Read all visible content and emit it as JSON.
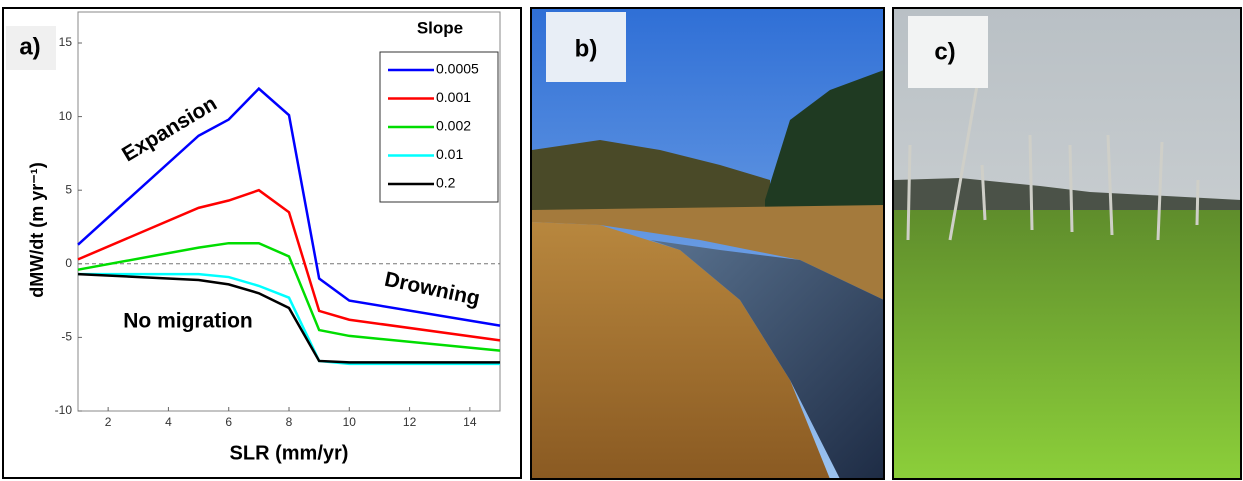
{
  "chart_data": {
    "type": "line",
    "panel_label": "a)",
    "xlabel": "SLR (mm/yr)",
    "ylabel": "dMW/dt (m yr⁻¹)",
    "legend_title": "Slope",
    "legend": "upper right",
    "annotations": [
      "Expansion",
      "Drowning",
      "No migration"
    ],
    "zero_line": true,
    "x": [
      1,
      5,
      6,
      7,
      8,
      9,
      10,
      15
    ],
    "series": [
      {
        "name": "0.0005",
        "color": "#0000ff",
        "values": [
          1.3,
          8.7,
          9.8,
          11.9,
          10.1,
          -1,
          -2.5,
          -4.2
        ]
      },
      {
        "name": "0.001",
        "color": "#ff0000",
        "values": [
          0.3,
          3.8,
          4.3,
          5.0,
          3.5,
          -3.2,
          -3.8,
          -5.2
        ]
      },
      {
        "name": "0.002",
        "color": "#00dd00",
        "values": [
          -0.4,
          1.1,
          1.4,
          1.4,
          0.5,
          -4.5,
          -4.9,
          -5.9
        ]
      },
      {
        "name": "0.01",
        "color": "#00ffff",
        "values": [
          -0.7,
          -0.7,
          -0.9,
          -1.5,
          -2.3,
          -6.6,
          -6.8,
          -6.8
        ]
      },
      {
        "name": "0.2",
        "color": "#000000",
        "values": [
          -0.7,
          -1.1,
          -1.4,
          -2.0,
          -3.0,
          -6.6,
          -6.7,
          -6.7
        ]
      }
    ],
    "xlim": [
      1,
      15
    ],
    "xticks": [
      2,
      4,
      6,
      8,
      10,
      12,
      14
    ],
    "ylim": [
      -10,
      15
    ],
    "yticks": [
      -10,
      -5,
      0,
      5,
      10,
      15
    ]
  },
  "photo_labels": [
    "b)",
    "c)"
  ]
}
